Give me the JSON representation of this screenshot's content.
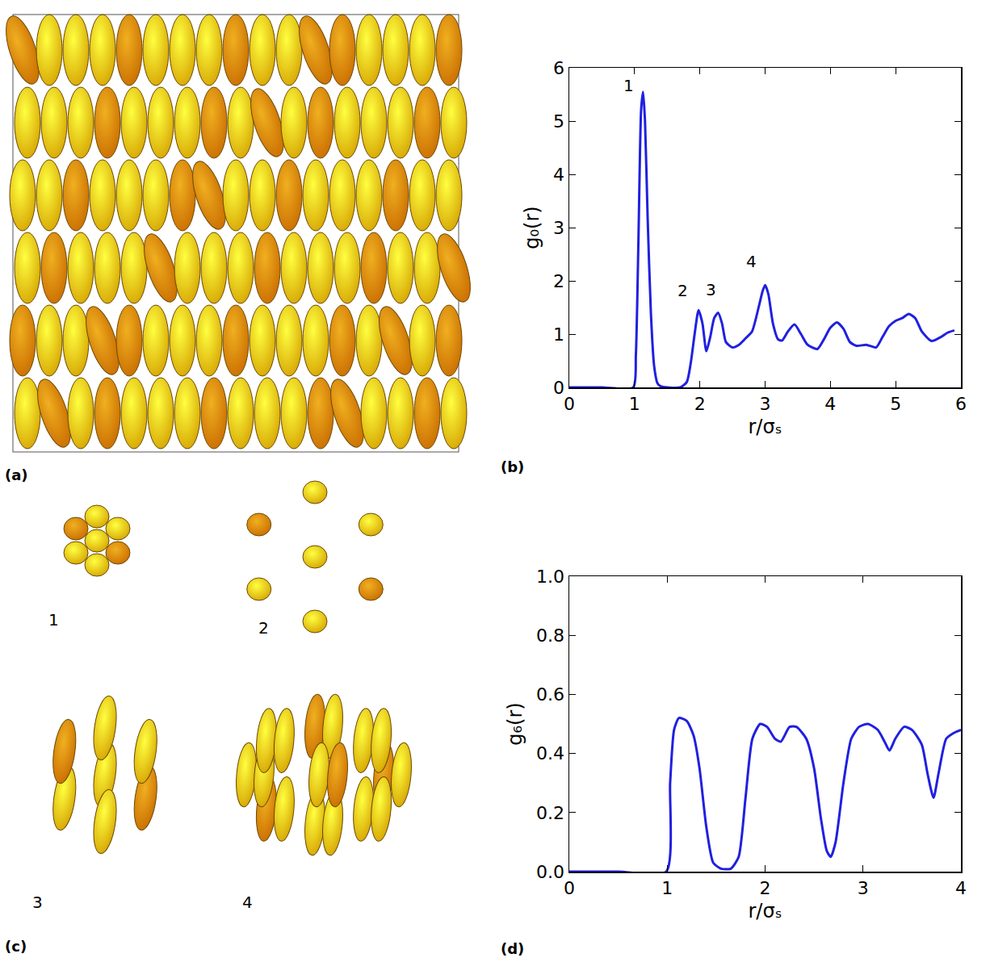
{
  "chart_data": [
    {
      "type": "line",
      "label": "(b)",
      "x_label": "r/σₛ",
      "y_label": "g₀(r)",
      "color": "#2020e0",
      "grid": false,
      "x": [
        0,
        0.5,
        0.98,
        1.02,
        1.06,
        1.1,
        1.13,
        1.16,
        1.2,
        1.25,
        1.3,
        1.35,
        1.4,
        1.5,
        1.7,
        1.8,
        1.86,
        1.92,
        1.98,
        2.04,
        2.1,
        2.16,
        2.22,
        2.28,
        2.34,
        2.4,
        2.5,
        2.6,
        2.7,
        2.8,
        2.9,
        2.96,
        3.0,
        3.05,
        3.12,
        3.2,
        3.26,
        3.35,
        3.45,
        3.55,
        3.65,
        3.8,
        3.9,
        4.0,
        4.1,
        4.2,
        4.3,
        4.4,
        4.55,
        4.7,
        4.8,
        4.9,
        5.0,
        5.1,
        5.2,
        5.3,
        5.4,
        5.55,
        5.7,
        5.8,
        5.9
      ],
      "values": [
        0,
        0,
        0,
        0.6,
        2.8,
        5.2,
        5.55,
        5.0,
        3.2,
        1.4,
        0.4,
        0.08,
        0.02,
        0,
        0,
        0.1,
        0.45,
        1.0,
        1.45,
        1.2,
        0.68,
        0.95,
        1.3,
        1.4,
        1.2,
        0.85,
        0.75,
        0.8,
        0.92,
        1.05,
        1.5,
        1.8,
        1.92,
        1.75,
        1.2,
        0.9,
        0.88,
        1.05,
        1.18,
        1.0,
        0.8,
        0.72,
        0.9,
        1.12,
        1.22,
        1.1,
        0.85,
        0.78,
        0.8,
        0.75,
        0.95,
        1.15,
        1.25,
        1.3,
        1.38,
        1.3,
        1.05,
        0.87,
        0.95,
        1.03,
        1.07
      ],
      "xlim": [
        0,
        6
      ],
      "xticks": [
        0,
        1,
        2,
        3,
        4,
        5,
        6
      ],
      "ylim": [
        0,
        6
      ],
      "yticks": [
        0,
        1,
        2,
        3,
        4,
        5,
        6
      ],
      "annotations": [
        {
          "text": "1",
          "x": 1.02,
          "y": 5.45
        },
        {
          "text": "2",
          "x": 1.84,
          "y": 1.6
        },
        {
          "text": "3",
          "x": 2.28,
          "y": 1.62
        },
        {
          "text": "4",
          "x": 2.9,
          "y": 2.15
        }
      ]
    },
    {
      "type": "line",
      "label": "(d)",
      "x_label": "r/σₛ",
      "y_label": "g₆(r)",
      "color": "#2020e0",
      "grid": false,
      "x": [
        0,
        0.5,
        0.99,
        1.03,
        1.07,
        1.12,
        1.2,
        1.27,
        1.33,
        1.4,
        1.47,
        1.55,
        1.65,
        1.73,
        1.8,
        1.87,
        1.95,
        2.02,
        2.1,
        2.16,
        2.25,
        2.32,
        2.42,
        2.5,
        2.57,
        2.63,
        2.67,
        2.72,
        2.8,
        2.88,
        2.96,
        3.05,
        3.15,
        3.22,
        3.27,
        3.33,
        3.42,
        3.5,
        3.6,
        3.66,
        3.72,
        3.77,
        3.85,
        3.93,
        4.0
      ],
      "values": [
        0,
        0,
        0,
        0.3,
        0.48,
        0.52,
        0.51,
        0.46,
        0.35,
        0.15,
        0.03,
        0.01,
        0.01,
        0.05,
        0.25,
        0.45,
        0.5,
        0.49,
        0.45,
        0.44,
        0.49,
        0.49,
        0.45,
        0.35,
        0.18,
        0.07,
        0.05,
        0.1,
        0.3,
        0.45,
        0.49,
        0.5,
        0.48,
        0.44,
        0.41,
        0.45,
        0.49,
        0.48,
        0.43,
        0.33,
        0.25,
        0.33,
        0.45,
        0.47,
        0.48
      ],
      "xlim": [
        0,
        4
      ],
      "xticks": [
        0,
        1,
        2,
        3,
        4
      ],
      "ylim": [
        0,
        1
      ],
      "yticks": [
        {
          "value": 0,
          "label": "0.0"
        },
        {
          "value": 0.2,
          "label": "0.2"
        },
        {
          "value": 0.4,
          "label": "0.4"
        },
        {
          "value": 0.6,
          "label": "0.6"
        },
        {
          "value": 0.8,
          "label": "0.8"
        },
        {
          "value": 1,
          "label": "1.0"
        }
      ]
    }
  ],
  "figure": {
    "panel_a": {
      "label": "(a)"
    },
    "panel_c": {
      "label": "(c)",
      "clusters": [
        "1",
        "2",
        "3",
        "4"
      ]
    }
  }
}
